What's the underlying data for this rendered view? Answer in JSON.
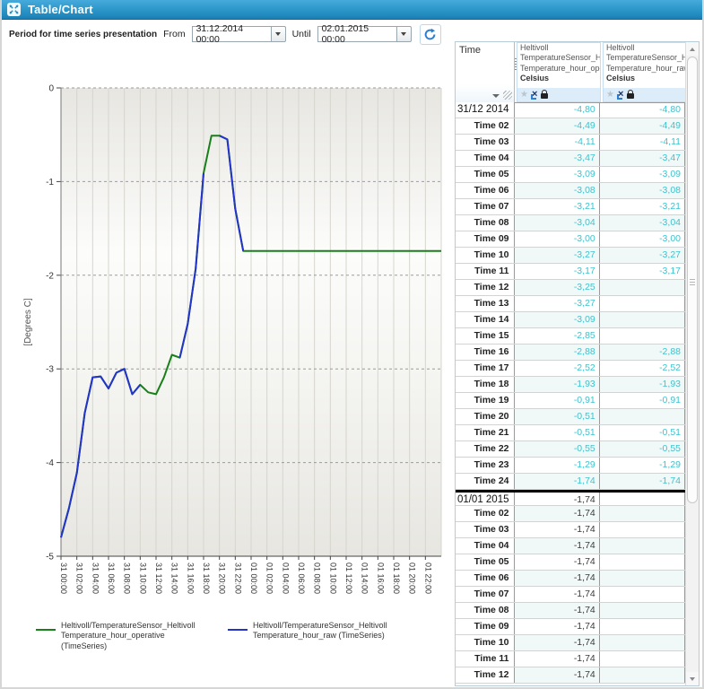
{
  "window": {
    "title": "Table/Chart"
  },
  "controls": {
    "period_label": "Period for time series presentation",
    "from_label": "From",
    "from_value": "31.12.2014 00:00",
    "until_label": "Until",
    "until_value": "02.01.2015 00:00"
  },
  "chart_data": {
    "type": "line",
    "ylabel": "[Degrees C]",
    "ylim": [
      -5,
      0
    ],
    "y_ticks": [
      0,
      -1,
      -2,
      -3,
      -4,
      -5
    ],
    "x_range_hours": [
      0,
      48
    ],
    "x_tick_step_hours": 2,
    "x_tick_labels": [
      "31 00:00",
      "31 02:00",
      "31 04:00",
      "31 06:00",
      "31 08:00",
      "31 10:00",
      "31 12:00",
      "31 14:00",
      "31 16:00",
      "31 18:00",
      "31 20:00",
      "31 22:00",
      "01 00:00",
      "01 02:00",
      "01 04:00",
      "01 06:00",
      "01 08:00",
      "01 10:00",
      "01 12:00",
      "01 14:00",
      "01 16:00",
      "01 18:00",
      "01 20:00",
      "01 22:00"
    ],
    "grid": true,
    "legend_position": "bottom",
    "series": [
      {
        "name": "Heltivoll/TemperatureSensor_Heltivoll Temperature_hour_operative (TimeSeries)",
        "color": "#188018",
        "values": [
          -4.8,
          -4.49,
          -4.11,
          -3.47,
          -3.09,
          -3.08,
          -3.21,
          -3.04,
          -3.0,
          -3.27,
          -3.17,
          -3.25,
          -3.27,
          -3.09,
          -2.85,
          -2.88,
          -2.52,
          -1.93,
          -0.91,
          -0.51,
          -0.51,
          -0.55,
          -1.29,
          -1.74,
          -1.74,
          -1.74,
          -1.74,
          -1.74,
          -1.74,
          -1.74,
          -1.74,
          -1.74,
          -1.74,
          -1.74,
          -1.74,
          -1.74,
          -1.74,
          -1.74,
          -1.74,
          -1.74,
          -1.74,
          -1.74,
          -1.74,
          -1.74,
          -1.74,
          -1.74,
          -1.74,
          -1.74,
          -1.74
        ]
      },
      {
        "name": "Heltivoll/TemperatureSensor_Heltivoll Temperature_hour_raw (TimeSeries)",
        "color": "#2433cc",
        "values": [
          -4.8,
          -4.49,
          -4.11,
          -3.47,
          -3.09,
          -3.08,
          -3.21,
          -3.04,
          -3.0,
          -3.27,
          -3.17,
          null,
          null,
          null,
          null,
          -2.88,
          -2.52,
          -1.93,
          -0.91,
          null,
          -0.51,
          -0.55,
          -1.29,
          -1.74,
          null,
          null,
          null,
          null,
          null,
          null,
          null,
          null,
          null,
          null,
          null,
          null,
          null,
          null,
          null,
          null,
          null,
          null,
          null,
          null,
          null,
          null,
          null,
          null,
          null
        ]
      }
    ]
  },
  "table": {
    "time_header": "Time",
    "columns": [
      {
        "lines": [
          "Heltivoll",
          "TemperatureSensor_Helt",
          "Temperature_hour_oper"
        ],
        "unit": "Celsius"
      },
      {
        "lines": [
          "Heltivoll",
          "TemperatureSensor_Helt",
          "Temperature_hour_raw"
        ],
        "unit": "Celsius"
      }
    ],
    "value_colors": {
      "cyan": "#3fc3ce",
      "dark": "#3a3a3a"
    },
    "rows": [
      {
        "time": "31/12 2014",
        "date": true,
        "op": "-4,80",
        "raw": "-4,80",
        "c": "cyan"
      },
      {
        "time": "Time 02",
        "op": "-4,49",
        "raw": "-4,49",
        "c": "cyan"
      },
      {
        "time": "Time 03",
        "op": "-4,11",
        "raw": "-4,11",
        "c": "cyan"
      },
      {
        "time": "Time 04",
        "op": "-3,47",
        "raw": "-3,47",
        "c": "cyan"
      },
      {
        "time": "Time 05",
        "op": "-3,09",
        "raw": "-3,09",
        "c": "cyan"
      },
      {
        "time": "Time 06",
        "op": "-3,08",
        "raw": "-3,08",
        "c": "cyan"
      },
      {
        "time": "Time 07",
        "op": "-3,21",
        "raw": "-3,21",
        "c": "cyan"
      },
      {
        "time": "Time 08",
        "op": "-3,04",
        "raw": "-3,04",
        "c": "cyan"
      },
      {
        "time": "Time 09",
        "op": "-3,00",
        "raw": "-3,00",
        "c": "cyan"
      },
      {
        "time": "Time 10",
        "op": "-3,27",
        "raw": "-3,27",
        "c": "cyan"
      },
      {
        "time": "Time 11",
        "op": "-3,17",
        "raw": "-3,17",
        "c": "cyan"
      },
      {
        "time": "Time 12",
        "op": "-3,25",
        "raw": "",
        "c": "cyan"
      },
      {
        "time": "Time 13",
        "op": "-3,27",
        "raw": "",
        "c": "cyan"
      },
      {
        "time": "Time 14",
        "op": "-3,09",
        "raw": "",
        "c": "cyan"
      },
      {
        "time": "Time 15",
        "op": "-2,85",
        "raw": "",
        "c": "cyan"
      },
      {
        "time": "Time 16",
        "op": "-2,88",
        "raw": "-2,88",
        "c": "cyan"
      },
      {
        "time": "Time 17",
        "op": "-2,52",
        "raw": "-2,52",
        "c": "cyan"
      },
      {
        "time": "Time 18",
        "op": "-1,93",
        "raw": "-1,93",
        "c": "cyan"
      },
      {
        "time": "Time 19",
        "op": "-0,91",
        "raw": "-0,91",
        "c": "cyan"
      },
      {
        "time": "Time 20",
        "op": "-0,51",
        "raw": "",
        "c": "cyan"
      },
      {
        "time": "Time 21",
        "op": "-0,51",
        "raw": "-0,51",
        "c": "cyan"
      },
      {
        "time": "Time 22",
        "op": "-0,55",
        "raw": "-0,55",
        "c": "cyan"
      },
      {
        "time": "Time 23",
        "op": "-1,29",
        "raw": "-1,29",
        "c": "cyan"
      },
      {
        "time": "Time 24",
        "op": "-1,74",
        "raw": "-1,74",
        "c": "cyan"
      },
      {
        "time": "01/01 2015",
        "date": true,
        "sep": true,
        "op": "-1,74",
        "raw": "",
        "c": "dark"
      },
      {
        "time": "Time 02",
        "op": "-1,74",
        "raw": "",
        "c": "dark"
      },
      {
        "time": "Time 03",
        "op": "-1,74",
        "raw": "",
        "c": "dark"
      },
      {
        "time": "Time 04",
        "op": "-1,74",
        "raw": "",
        "c": "dark"
      },
      {
        "time": "Time 05",
        "op": "-1,74",
        "raw": "",
        "c": "dark"
      },
      {
        "time": "Time 06",
        "op": "-1,74",
        "raw": "",
        "c": "dark"
      },
      {
        "time": "Time 07",
        "op": "-1,74",
        "raw": "",
        "c": "dark"
      },
      {
        "time": "Time 08",
        "op": "-1,74",
        "raw": "",
        "c": "dark"
      },
      {
        "time": "Time 09",
        "op": "-1,74",
        "raw": "",
        "c": "dark"
      },
      {
        "time": "Time 10",
        "op": "-1,74",
        "raw": "",
        "c": "dark"
      },
      {
        "time": "Time 11",
        "op": "-1,74",
        "raw": "",
        "c": "dark"
      },
      {
        "time": "Time 12",
        "op": "-1,74",
        "raw": "",
        "c": "dark"
      }
    ]
  }
}
